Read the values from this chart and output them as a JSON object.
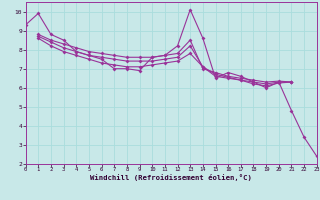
{
  "xlabel": "Windchill (Refroidissement éolien,°C)",
  "background_color": "#c8e8e8",
  "line_color": "#993399",
  "grid_color": "#aadddd",
  "xlim": [
    0,
    23
  ],
  "ylim": [
    2,
    10.5
  ],
  "yticks": [
    2,
    3,
    4,
    5,
    6,
    7,
    8,
    9,
    10
  ],
  "xticks": [
    0,
    1,
    2,
    3,
    4,
    5,
    6,
    7,
    8,
    9,
    10,
    11,
    12,
    13,
    14,
    15,
    16,
    17,
    18,
    19,
    20,
    21,
    22,
    23
  ],
  "lines": [
    {
      "x": [
        0,
        1,
        2,
        3,
        4,
        5,
        6,
        7,
        8,
        9,
        10,
        11,
        12,
        13,
        14,
        15,
        16,
        17,
        18,
        19,
        20,
        21,
        22,
        23
      ],
      "y": [
        9.3,
        9.9,
        8.8,
        8.5,
        7.9,
        7.7,
        7.5,
        7.0,
        7.0,
        6.9,
        7.6,
        7.7,
        8.2,
        10.1,
        8.6,
        6.5,
        6.8,
        6.6,
        6.3,
        6.0,
        6.3,
        4.8,
        3.4,
        2.4
      ]
    },
    {
      "x": [
        1,
        2,
        3,
        4,
        5,
        6,
        7,
        8,
        9,
        10,
        11,
        12,
        13,
        14,
        15,
        16,
        17,
        18,
        19,
        20,
        21
      ],
      "y": [
        8.8,
        8.5,
        8.3,
        8.1,
        7.9,
        7.8,
        7.7,
        7.6,
        7.6,
        7.6,
        7.7,
        7.8,
        8.5,
        7.0,
        6.8,
        6.6,
        6.5,
        6.4,
        6.3,
        6.35,
        6.3
      ]
    },
    {
      "x": [
        1,
        2,
        3,
        4,
        5,
        6,
        7,
        8,
        9,
        10,
        11,
        12,
        13,
        14,
        15,
        16,
        17,
        18,
        19,
        20,
        21
      ],
      "y": [
        8.7,
        8.4,
        8.1,
        7.9,
        7.7,
        7.6,
        7.5,
        7.4,
        7.4,
        7.4,
        7.5,
        7.6,
        8.2,
        7.1,
        6.7,
        6.55,
        6.4,
        6.3,
        6.2,
        6.3,
        6.3
      ]
    },
    {
      "x": [
        1,
        2,
        3,
        4,
        5,
        6,
        7,
        8,
        9,
        10,
        11,
        12,
        13,
        14,
        15,
        16,
        17,
        18,
        19,
        20,
        21
      ],
      "y": [
        8.6,
        8.2,
        7.9,
        7.7,
        7.5,
        7.3,
        7.2,
        7.1,
        7.1,
        7.2,
        7.3,
        7.4,
        7.8,
        7.1,
        6.6,
        6.5,
        6.4,
        6.2,
        6.1,
        6.25,
        6.3
      ]
    }
  ]
}
